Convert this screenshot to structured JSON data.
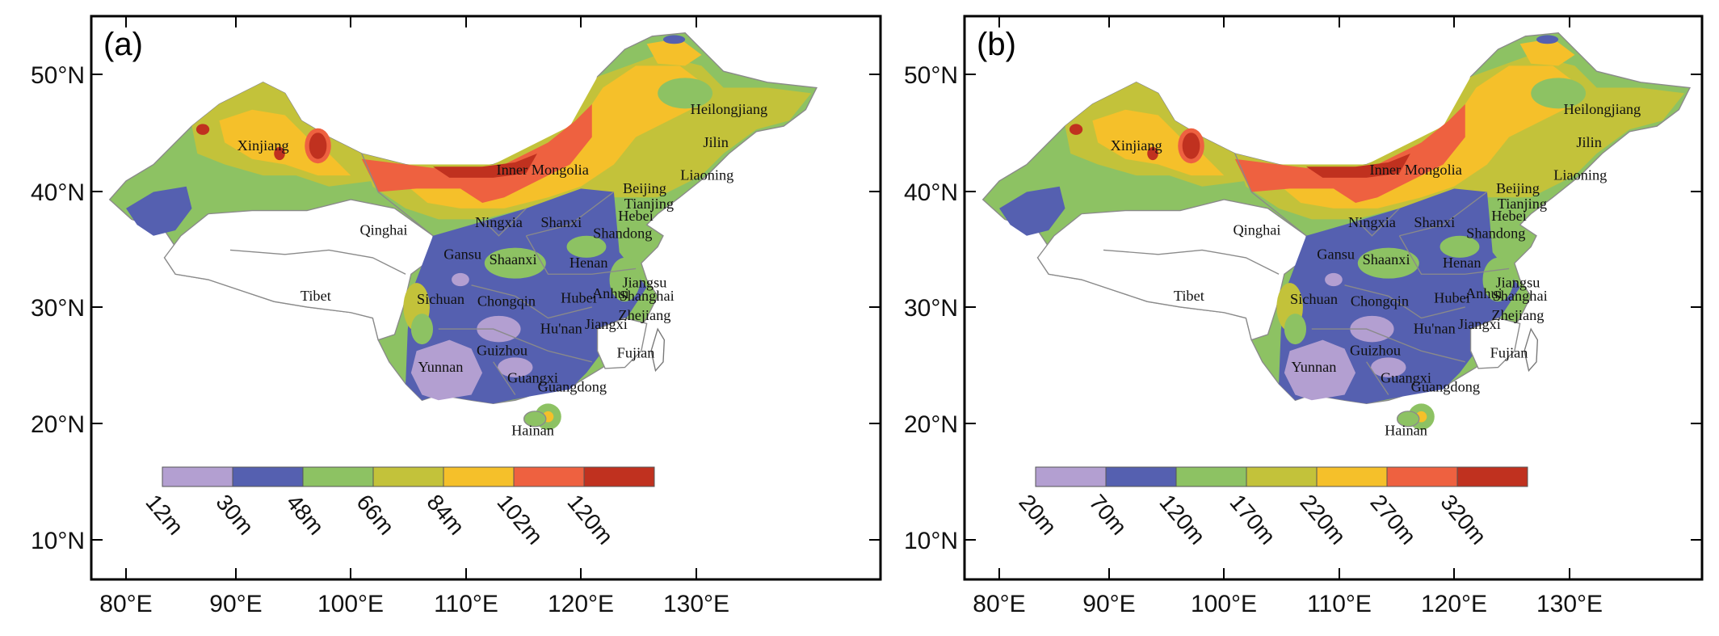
{
  "colors": {
    "lilac": "#b39fd1",
    "blue": "#5560b0",
    "green": "#8dc263",
    "olive": "#c3c23a",
    "yellow": "#f5c02a",
    "orange": "#ee6140",
    "red": "#c0311f",
    "border": "#8a8a8a"
  },
  "axes": {
    "y_ticks": [
      "50°N",
      "40°N",
      "30°N",
      "20°N",
      "10°N"
    ],
    "x_ticks": [
      "80°E",
      "90°E",
      "100°E",
      "110°E",
      "120°E",
      "130°E"
    ]
  },
  "panels": [
    {
      "label": "(a)",
      "legend_ticks": [
        "12m",
        "30m",
        "48m",
        "66m",
        "84m",
        "102m",
        "120m"
      ]
    },
    {
      "label": "(b)",
      "legend_ticks": [
        "20m",
        "70m",
        "120m",
        "170m",
        "220m",
        "270m",
        "320m"
      ]
    }
  ],
  "provinces": [
    "Xinjiang",
    "Qinghai",
    "Tibet",
    "Inner Mongolia",
    "Heilongjiang",
    "Jilin",
    "Liaoning",
    "Beijing",
    "Tianjing",
    "Hebei",
    "Shanxi",
    "Shandong",
    "Ningxia",
    "Gansu",
    "Shaanxi",
    "Henan",
    "Jiangsu",
    "Anhui",
    "Shanghai",
    "Sichuan",
    "Chongqin",
    "Hubei",
    "Zhejiang",
    "Hu'nan",
    "Jiangxi",
    "Fujian",
    "Yunnan",
    "Guizhou",
    "Guangxi",
    "Guangdong",
    "Hainan"
  ],
  "chart_data": [
    {
      "type": "map",
      "title": "(a)",
      "legend": {
        "type": "discrete colorbar",
        "breaks": [
          "12m",
          "30m",
          "48m",
          "66m",
          "84m",
          "102m",
          "120m"
        ],
        "colors": [
          "#b39fd1",
          "#5560b0",
          "#8dc263",
          "#c3c23a",
          "#f5c02a",
          "#ee6140",
          "#c0311f"
        ]
      },
      "lat_range": [
        "10°N",
        "50°N"
      ],
      "lon_range": [
        "80°E",
        "130°E"
      ]
    },
    {
      "type": "map",
      "title": "(b)",
      "legend": {
        "type": "discrete colorbar",
        "breaks": [
          "20m",
          "70m",
          "120m",
          "170m",
          "220m",
          "270m",
          "320m"
        ],
        "colors": [
          "#b39fd1",
          "#5560b0",
          "#8dc263",
          "#c3c23a",
          "#f5c02a",
          "#ee6140",
          "#c0311f"
        ]
      },
      "lat_range": [
        "10°N",
        "50°N"
      ],
      "lon_range": [
        "80°E",
        "130°E"
      ]
    }
  ]
}
